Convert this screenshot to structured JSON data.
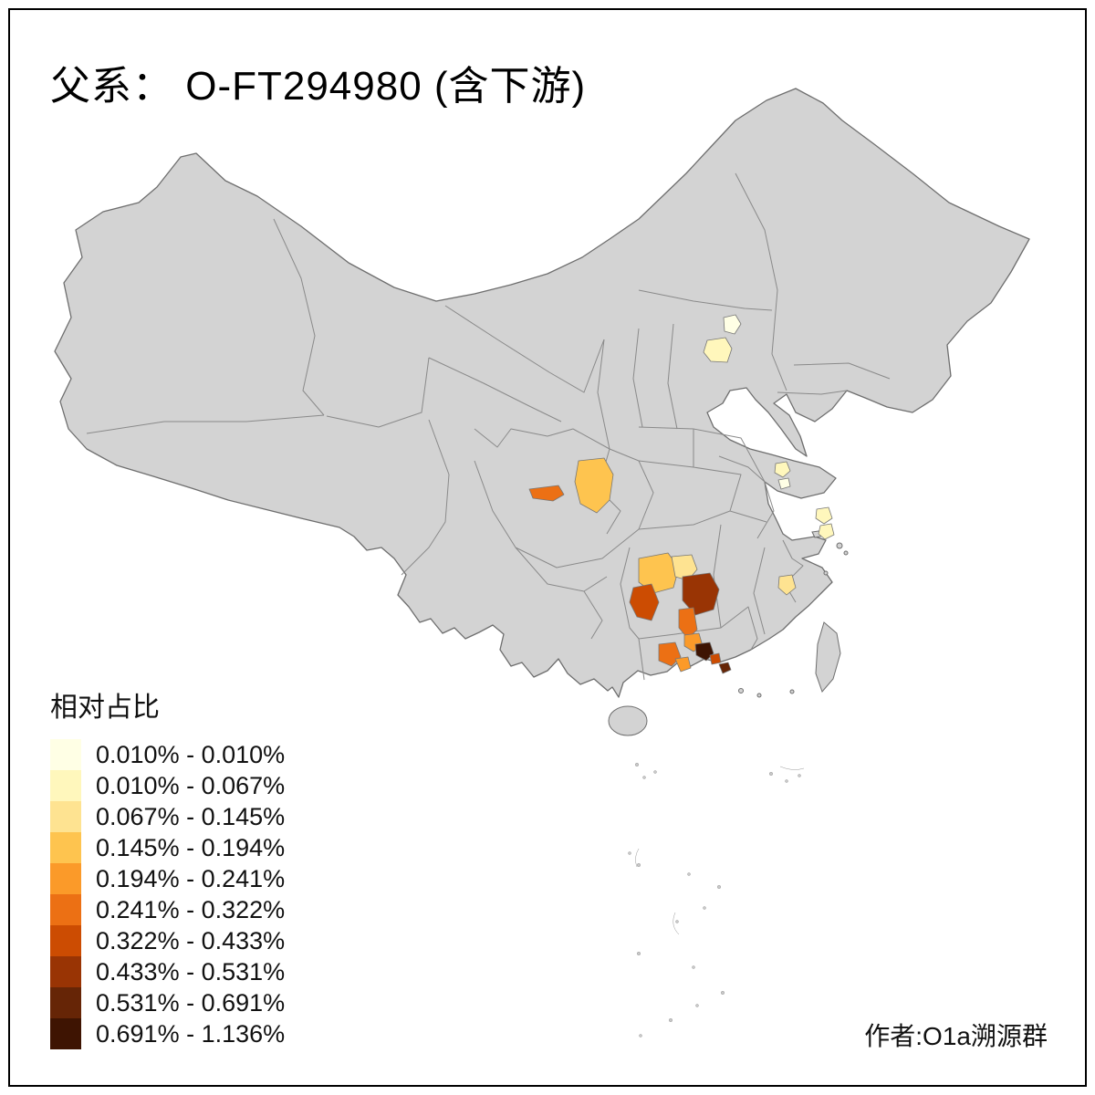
{
  "title": {
    "text": "父系：  O-FT294980 (含下游)"
  },
  "legend": {
    "title": "相对占比",
    "items": [
      {
        "label": "0.010% - 0.010%",
        "color": "#FFFFE5"
      },
      {
        "label": "0.010% - 0.067%",
        "color": "#FFF7BC"
      },
      {
        "label": "0.067% - 0.145%",
        "color": "#FEE391"
      },
      {
        "label": "0.145% - 0.194%",
        "color": "#FEC44F"
      },
      {
        "label": "0.194% - 0.241%",
        "color": "#FB9A29"
      },
      {
        "label": "0.241% - 0.322%",
        "color": "#EC7014"
      },
      {
        "label": "0.322% - 0.433%",
        "color": "#CC4C02"
      },
      {
        "label": "0.433% - 0.531%",
        "color": "#993404"
      },
      {
        "label": "0.531% - 0.691%",
        "color": "#662506"
      },
      {
        "label": "0.691% - 1.136%",
        "color": "#3E1402"
      }
    ]
  },
  "credit": {
    "text": "作者:O1a溯源群"
  },
  "map": {
    "land_fill": "#D3D3D3",
    "land_stroke": "#6E6E6E",
    "inner_border_stroke": "#8A8A8A",
    "ocean": "#FFFFFF",
    "regions": [
      {
        "color": "#FFFFE5"
      },
      {
        "color": "#FFF7BC"
      },
      {
        "color": "#FEC44F"
      },
      {
        "color": "#EC7014"
      },
      {
        "color": "#FFF7BC"
      },
      {
        "color": "#FFFFE5"
      },
      {
        "color": "#FFF7BC"
      },
      {
        "color": "#FFF7BC"
      },
      {
        "color": "#FEC44F"
      },
      {
        "color": "#FEE391"
      },
      {
        "color": "#CC4C02"
      },
      {
        "color": "#993404"
      },
      {
        "color": "#EC7014"
      },
      {
        "color": "#FB9A29"
      },
      {
        "color": "#EC7014"
      },
      {
        "color": "#FB9A29"
      },
      {
        "color": "#3E1402"
      },
      {
        "color": "#CC4C02"
      },
      {
        "color": "#FEE391"
      },
      {
        "color": "#662506"
      }
    ]
  },
  "chart_data": {
    "type": "choropleth-map",
    "title": "父系： O-FT294980 (含下游)",
    "legend_title": "相对占比",
    "legend_position": "bottom-left",
    "classes": [
      {
        "range": "0.010% - 0.010%",
        "color": "#FFFFE5"
      },
      {
        "range": "0.010% - 0.067%",
        "color": "#FFF7BC"
      },
      {
        "range": "0.067% - 0.145%",
        "color": "#FEE391"
      },
      {
        "range": "0.145% - 0.194%",
        "color": "#FEC44F"
      },
      {
        "range": "0.194% - 0.241%",
        "color": "#FB9A29"
      },
      {
        "range": "0.241% - 0.322%",
        "color": "#EC7014"
      },
      {
        "range": "0.322% - 0.433%",
        "color": "#CC4C02"
      },
      {
        "range": "0.433% - 0.531%",
        "color": "#993404"
      },
      {
        "range": "0.531% - 0.691%",
        "color": "#662506"
      },
      {
        "range": "0.691% - 1.136%",
        "color": "#3E1402"
      }
    ],
    "value_range": [
      0.01,
      1.136
    ],
    "unit": "%",
    "annotation": "作者:O1a溯源群"
  }
}
